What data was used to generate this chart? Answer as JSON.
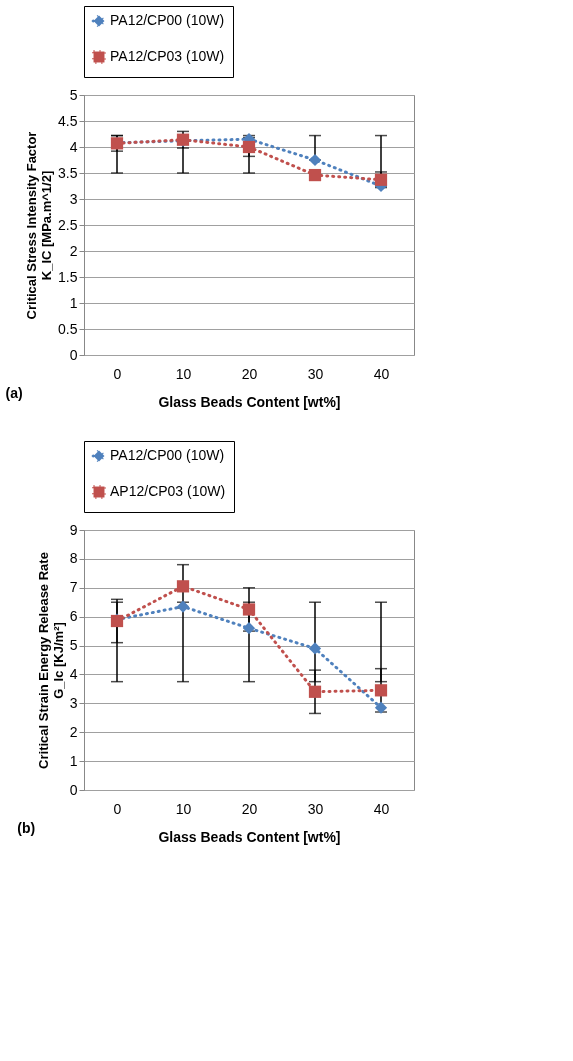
{
  "chart_data": [
    {
      "type": "line",
      "xlabel": "Glass Beads Content [wt%]",
      "ylabel": "Critical Stress Intensity Factor\nK_IC [MPa.m^1/2]",
      "annotations": [
        "(a)"
      ],
      "categories": [
        "0",
        "10",
        "20",
        "30",
        "40"
      ],
      "ylim": [
        0,
        5
      ],
      "yticks": [
        0,
        0.5,
        1,
        1.5,
        2,
        2.5,
        3,
        3.5,
        4,
        4.5,
        5
      ],
      "grid": "y",
      "legend": "top",
      "line_style": "dotted",
      "series": [
        {
          "name": "PA12/CP00 (10W)",
          "color": "#4f81bd",
          "marker": "diamond",
          "values": [
            4.08,
            4.12,
            4.15,
            3.75,
            3.25
          ],
          "errors": [
            [
              3.5,
              4.22
            ],
            [
              3.5,
              4.12
            ],
            [
              3.5,
              4.22
            ],
            [
              3.75,
              4.22
            ],
            [
              3.25,
              4.22
            ]
          ]
        },
        {
          "name": "PA12/CP03 (10W)",
          "color": "#c0504d",
          "marker": "square",
          "values": [
            4.07,
            4.14,
            4.0,
            3.46,
            3.37
          ],
          "errors": [
            0.15,
            0.16,
            0.18,
            null,
            0.15
          ]
        }
      ]
    },
    {
      "type": "line",
      "xlabel": "Glass Beads Content [wt%]",
      "ylabel": "Critical Strain Energy Release Rate\nG_Ic [KJ/m²]",
      "annotations": [
        "(b)"
      ],
      "categories": [
        "0",
        "10",
        "20",
        "30",
        "40"
      ],
      "ylim": [
        0,
        9
      ],
      "yticks": [
        0,
        1,
        2,
        3,
        4,
        5,
        6,
        7,
        8,
        9
      ],
      "grid": "y",
      "legend": "top",
      "line_style": "dotted",
      "series": [
        {
          "name": "PA12/CP00 (10W)",
          "color": "#4f81bd",
          "marker": "diamond",
          "values": [
            5.9,
            6.35,
            5.6,
            4.9,
            2.85
          ],
          "errors": [
            [
              3.75,
              6.5
            ],
            [
              3.75,
              6.5
            ],
            [
              3.75,
              6.5
            ],
            [
              3.75,
              6.5
            ],
            [
              3.75,
              6.5
            ]
          ]
        },
        {
          "name": "AP12/CP03 (10W)",
          "color": "#c0504d",
          "marker": "square",
          "values": [
            5.85,
            7.05,
            6.25,
            3.4,
            3.45
          ],
          "errors": [
            0.75,
            0.75,
            0.75,
            0.75,
            0.75
          ]
        }
      ]
    }
  ]
}
